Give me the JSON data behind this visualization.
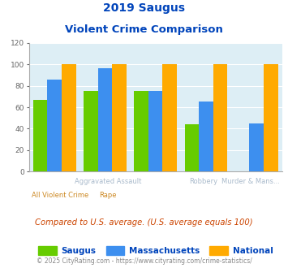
{
  "title_line1": "2019 Saugus",
  "title_line2": "Violent Crime Comparison",
  "saugus": [
    67,
    75,
    75,
    44,
    0
  ],
  "massachusetts": [
    86,
    96,
    75,
    65,
    45
  ],
  "national": [
    100,
    100,
    100,
    100,
    100
  ],
  "colors": {
    "saugus": "#66cc00",
    "massachusetts": "#3d8fef",
    "national": "#ffaa00"
  },
  "ylim": [
    0,
    120
  ],
  "yticks": [
    0,
    20,
    40,
    60,
    80,
    100,
    120
  ],
  "bg_color": "#ddeef5",
  "title_color": "#0044bb",
  "xlabel_top_color": "#aabbcc",
  "xlabel_bot_color": "#cc8822",
  "top_labels": [
    "",
    "Aggravated Assault",
    "",
    "Robbery",
    "Murder & Mans..."
  ],
  "bottom_labels": [
    "All Violent Crime",
    "Rape",
    "",
    "",
    ""
  ],
  "footer_text": "Compared to U.S. average. (U.S. average equals 100)",
  "credit_text": "© 2025 CityRating.com - https://www.cityrating.com/crime-statistics/",
  "legend_labels": [
    "Saugus",
    "Massachusetts",
    "National"
  ]
}
